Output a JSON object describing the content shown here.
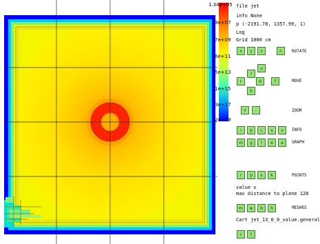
{
  "colorbar": {
    "ticks": [
      "1.34e+05",
      "9e+07",
      "7e+09",
      "6e+11",
      "5e+13",
      "1e+15",
      "3e+17",
      "2e+19"
    ]
  },
  "info": {
    "file": "file jet",
    "info": "info None",
    "p": "p (-2191.78, 1357.99,  1)",
    "log": "Log",
    "grid": "Grid 1000 cm",
    "value": "value x",
    "distance": "max distance to plane 128",
    "cart": "Cart jet_13_0_0_value.general"
  },
  "sections": {
    "rotate": "ROTATE",
    "move": "MOVE",
    "zoom": "ZOOM",
    "info": "INFO",
    "graph": "GRAPH",
    "points": "POINTS",
    "meshes": "MESHES"
  },
  "buttons": {
    "rotate": [
      "x",
      "y",
      "z",
      "n"
    ],
    "move": [
      "u",
      "l",
      "r",
      "d",
      "f",
      "b"
    ],
    "zoom": [
      "+",
      "-"
    ],
    "info": [
      "i",
      "p",
      "c",
      "s",
      "v"
    ],
    "graph": [
      "m",
      "g",
      "l",
      "e",
      "a"
    ],
    "points": [
      "r",
      "p",
      "s",
      "k"
    ],
    "meshes": [
      "m",
      "w",
      "b",
      "h"
    ],
    "cart": [
      "c",
      "t"
    ]
  },
  "colors": {
    "background": "#0000ff",
    "mid": "#ffee00",
    "hot": "#ff2000",
    "button": "#9be17d"
  }
}
